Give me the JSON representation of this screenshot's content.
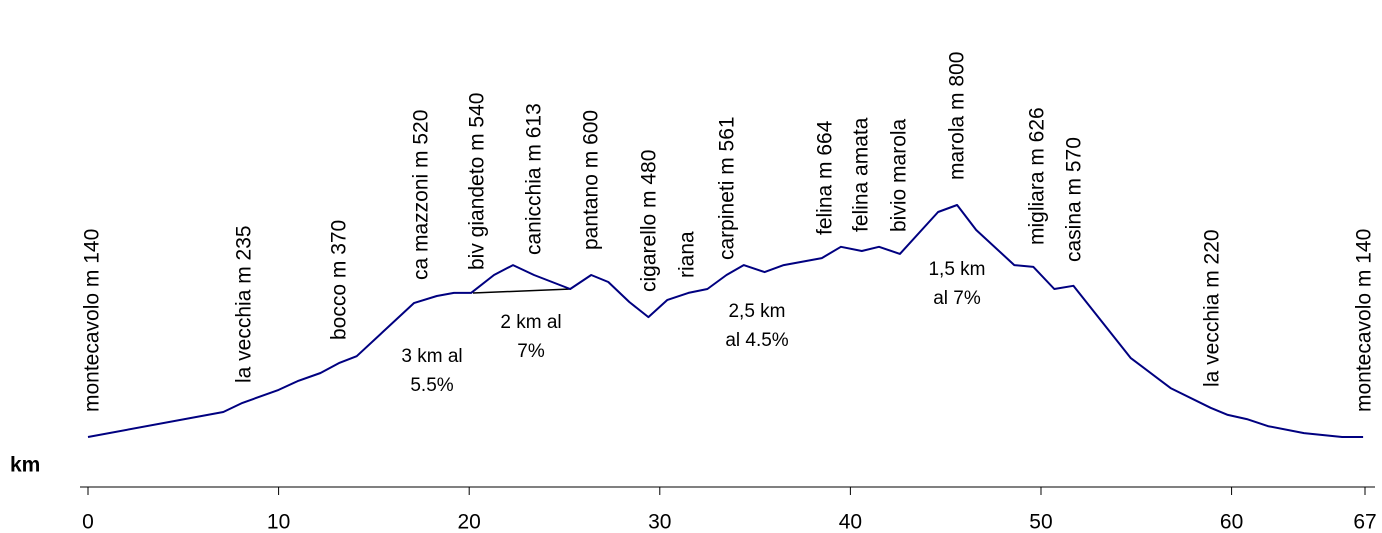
{
  "chart_data": {
    "type": "line",
    "x_label": "km",
    "xlim": [
      0,
      67
    ],
    "xticks": [
      0,
      10,
      20,
      30,
      40,
      50,
      60,
      67
    ],
    "x": [
      0,
      7.1,
      8.1,
      10.0,
      11.0,
      12.2,
      13.2,
      14.1,
      17.1,
      18.3,
      19.2,
      20.1,
      21.3,
      22.3,
      23.4,
      25.3,
      26.4,
      27.3,
      28.4,
      29.4,
      30.4,
      31.5,
      32.5,
      33.5,
      34.4,
      35.5,
      36.5,
      38.5,
      39.5,
      40.6,
      41.5,
      42.6,
      44.6,
      45.6,
      46.6,
      48.6,
      49.6,
      50.7,
      51.7,
      54.7,
      56.8,
      58.9,
      59.8,
      60.8,
      61.9,
      63.8,
      65.8,
      66.9
    ],
    "series": [
      {
        "color": "#000080",
        "values": [
          140,
          211,
          237,
          274,
          299,
          322,
          351,
          370,
          521,
          541,
          550,
          550,
          601,
          629,
          601,
          561,
          601,
          581,
          524,
          481,
          530,
          550,
          561,
          601,
          629,
          609,
          629,
          649,
          681,
          669,
          681,
          661,
          780,
          800,
          729,
          629,
          624,
          561,
          570,
          365,
          279,
          223,
          203,
          191,
          171,
          151,
          140,
          140
        ]
      }
    ],
    "annotations": [
      "montecavolo m 140",
      "la vecchia m 235",
      "bocco m 370",
      "ca mazzoni m 520",
      "biv giandeto m 540",
      "canicchia m 613",
      "pantano m 600",
      "cigarello m 480",
      "riana",
      "carpineti m 561",
      "felina m 664",
      "felina amata",
      "bivio marola",
      "marola m 800",
      "migliara m 626",
      "casina m 570",
      "la vecchia m 220",
      "montecavolo m 140"
    ],
    "slope_labels": [
      [
        "3 km al",
        "5.5%"
      ],
      [
        "2 km al",
        "7%"
      ],
      [
        "2,5 km",
        "al 4.5%"
      ],
      [
        "1,5 km",
        "al 7%"
      ]
    ]
  }
}
